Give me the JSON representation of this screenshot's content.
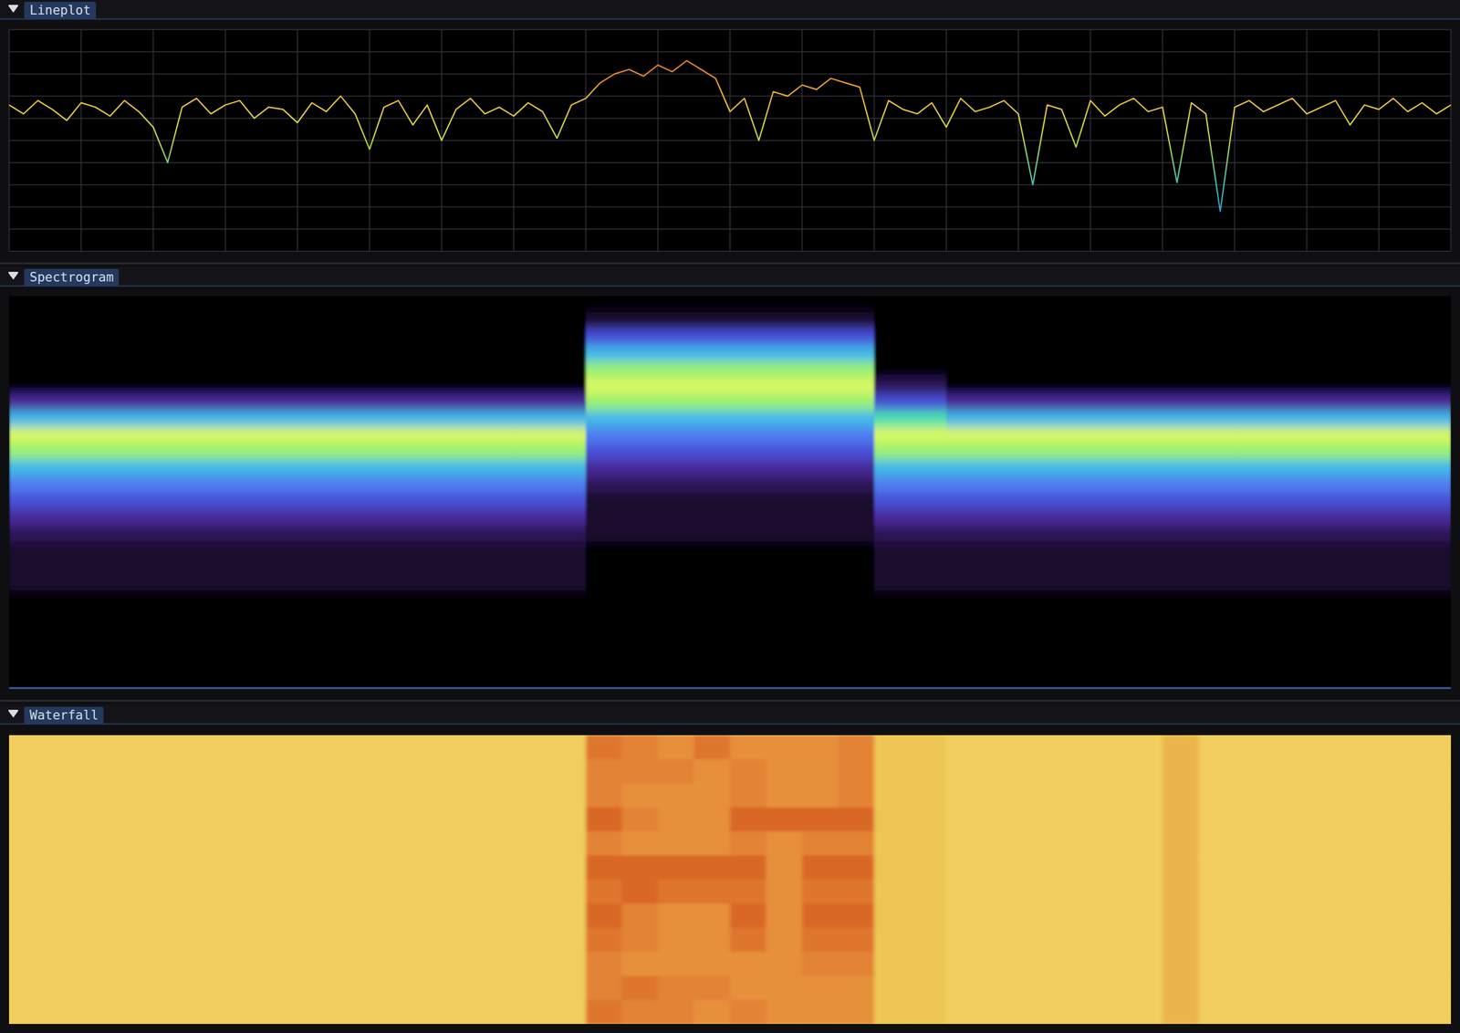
{
  "chart_data": [
    {
      "type": "line",
      "title": "Lineplot",
      "x": [
        0,
        1,
        2,
        3,
        4,
        5,
        6,
        7,
        8,
        9,
        10,
        11,
        12,
        13,
        14,
        15,
        16,
        17,
        18,
        19,
        20,
        21,
        22,
        23,
        24,
        25,
        26,
        27,
        28,
        29,
        30,
        31,
        32,
        33,
        34,
        35,
        36,
        37,
        38,
        39,
        40,
        41,
        42,
        43,
        44,
        45,
        46,
        47,
        48,
        49,
        50,
        51,
        52,
        53,
        54,
        55,
        56,
        57,
        58,
        59,
        60,
        61,
        62,
        63,
        64,
        65,
        66,
        67,
        68,
        69,
        70,
        71,
        72,
        73,
        74,
        75,
        76,
        77,
        78,
        79,
        80,
        81,
        82,
        83,
        84,
        85,
        86,
        87,
        88,
        89,
        90,
        91,
        92,
        93,
        94,
        95,
        96,
        97,
        98,
        99,
        100
      ],
      "values": [
        6.6,
        6.2,
        6.8,
        6.4,
        5.9,
        6.7,
        6.5,
        6.1,
        6.8,
        6.3,
        5.6,
        4.0,
        6.5,
        6.9,
        6.2,
        6.6,
        6.8,
        6.0,
        6.5,
        6.4,
        5.8,
        6.7,
        6.3,
        7.0,
        6.2,
        4.6,
        6.5,
        6.8,
        5.7,
        6.6,
        5.0,
        6.4,
        6.9,
        6.2,
        6.5,
        6.1,
        6.7,
        6.3,
        5.1,
        6.6,
        6.9,
        7.6,
        8.0,
        8.2,
        7.9,
        8.4,
        8.1,
        8.6,
        8.2,
        7.8,
        6.3,
        6.9,
        5.0,
        7.2,
        7.0,
        7.5,
        7.3,
        7.8,
        7.6,
        7.4,
        5.0,
        6.8,
        6.4,
        6.2,
        6.7,
        5.6,
        6.9,
        6.3,
        6.5,
        6.8,
        6.2,
        3.0,
        6.6,
        6.4,
        4.7,
        6.8,
        6.1,
        6.6,
        6.9,
        6.3,
        6.5,
        3.1,
        6.7,
        6.2,
        1.8,
        6.5,
        6.8,
        6.3,
        6.6,
        6.9,
        6.2,
        6.5,
        6.8,
        5.7,
        6.6,
        6.4,
        6.9,
        6.3,
        6.7,
        6.2,
        6.6
      ],
      "xlim": [
        0,
        100
      ],
      "ylim": [
        0,
        10
      ],
      "xticks": [
        0,
        5,
        10,
        15,
        20,
        25,
        30,
        35,
        40,
        45,
        50,
        55,
        60,
        65,
        70,
        75,
        80,
        85,
        90,
        95,
        100
      ],
      "yticks": [
        0,
        1,
        2,
        3,
        4,
        5,
        6,
        7,
        8,
        9,
        10
      ],
      "grid": true,
      "tick_labels": false
    },
    {
      "type": "heatmap",
      "title": "Spectrogram",
      "zlim": [
        0,
        9
      ],
      "tick_labels": false,
      "cells": [
        [
          0,
          0,
          0,
          0,
          0,
          0,
          0,
          0,
          0,
          0,
          0,
          0,
          0,
          0,
          0,
          0,
          0,
          0,
          0,
          0
        ],
        [
          0,
          0,
          0,
          0,
          0,
          0,
          0,
          0,
          1,
          1,
          1,
          1,
          0,
          0,
          0,
          0,
          0,
          0,
          0,
          0
        ],
        [
          0,
          0,
          0,
          0,
          0,
          0,
          0,
          0,
          4,
          4,
          4,
          4,
          0,
          0,
          0,
          0,
          0,
          0,
          0,
          0
        ],
        [
          0,
          0,
          0,
          0,
          0,
          0,
          0,
          0,
          6,
          6,
          6,
          6,
          0,
          0,
          0,
          0,
          0,
          0,
          0,
          0
        ],
        [
          0,
          0,
          0,
          0,
          0,
          0,
          0,
          0,
          8,
          8,
          8,
          8,
          0,
          0,
          0,
          0,
          0,
          0,
          0,
          0
        ],
        [
          0,
          0,
          0,
          0,
          0,
          0,
          0,
          0,
          9,
          9,
          9,
          9,
          2,
          0,
          0,
          0,
          0,
          0,
          0,
          0
        ],
        [
          3,
          3,
          3,
          3,
          3,
          3,
          3,
          3,
          8,
          8,
          8,
          8,
          4,
          3,
          3,
          3,
          3,
          3,
          3,
          3
        ],
        [
          6,
          6,
          6,
          6,
          6,
          6,
          6,
          6,
          6,
          6,
          6,
          6,
          7,
          6,
          6,
          6,
          6,
          6,
          6,
          6
        ],
        [
          9,
          9,
          9,
          9,
          9,
          9,
          9,
          9,
          5,
          5,
          5,
          5,
          9,
          9,
          9,
          9,
          9,
          9,
          9,
          9
        ],
        [
          8,
          8,
          8,
          8,
          8,
          8,
          8,
          8,
          4,
          4,
          4,
          4,
          8,
          8,
          8,
          8,
          8,
          8,
          8,
          8
        ],
        [
          6,
          6,
          6,
          6,
          6,
          6,
          6,
          6,
          3,
          3,
          3,
          3,
          6,
          6,
          6,
          6,
          6,
          6,
          6,
          6
        ],
        [
          5,
          5,
          5,
          5,
          5,
          5,
          5,
          5,
          2,
          2,
          2,
          2,
          5,
          5,
          5,
          5,
          5,
          5,
          5,
          5
        ],
        [
          4,
          4,
          4,
          4,
          4,
          4,
          4,
          4,
          1,
          1,
          1,
          1,
          4,
          4,
          4,
          4,
          4,
          4,
          4,
          4
        ],
        [
          3,
          3,
          3,
          3,
          3,
          3,
          3,
          3,
          1,
          1,
          1,
          1,
          3,
          3,
          3,
          3,
          3,
          3,
          3,
          3
        ],
        [
          2,
          2,
          2,
          2,
          2,
          2,
          2,
          2,
          1,
          1,
          1,
          1,
          2,
          2,
          2,
          2,
          2,
          2,
          2,
          2
        ],
        [
          1,
          1,
          1,
          1,
          1,
          1,
          1,
          1,
          0,
          0,
          0,
          0,
          1,
          1,
          1,
          1,
          1,
          1,
          1,
          1
        ],
        [
          1,
          1,
          1,
          1,
          1,
          1,
          1,
          1,
          0,
          0,
          0,
          0,
          1,
          1,
          1,
          1,
          1,
          1,
          1,
          1
        ],
        [
          1,
          1,
          1,
          1,
          1,
          1,
          1,
          1,
          0,
          0,
          0,
          0,
          1,
          1,
          1,
          1,
          1,
          1,
          1,
          1
        ],
        [
          0,
          0,
          0,
          0,
          0,
          0,
          0,
          0,
          0,
          0,
          0,
          0,
          0,
          0,
          0,
          0,
          0,
          0,
          0,
          0
        ],
        [
          0,
          0,
          0,
          0,
          0,
          0,
          0,
          0,
          0,
          0,
          0,
          0,
          0,
          0,
          0,
          0,
          0,
          0,
          0,
          0
        ],
        [
          0,
          0,
          0,
          0,
          0,
          0,
          0,
          0,
          0,
          0,
          0,
          0,
          0,
          0,
          0,
          0,
          0,
          0,
          0,
          0
        ],
        [
          0,
          0,
          0,
          0,
          0,
          0,
          0,
          0,
          0,
          0,
          0,
          0,
          0,
          0,
          0,
          0,
          0,
          0,
          0,
          0
        ],
        [
          0,
          0,
          0,
          0,
          0,
          0,
          0,
          0,
          0,
          0,
          0,
          0,
          0,
          0,
          0,
          0,
          0,
          0,
          0,
          0
        ],
        [
          0,
          0,
          0,
          0,
          0,
          0,
          0,
          0,
          0,
          0,
          0,
          0,
          0,
          0,
          0,
          0,
          0,
          0,
          0,
          0
        ]
      ]
    },
    {
      "type": "heatmap",
      "title": "Waterfall",
      "zlim": [
        0,
        9
      ],
      "tick_labels": false,
      "cells": [
        [
          1,
          1,
          1,
          1,
          1,
          1,
          1,
          1,
          1,
          1,
          1,
          1,
          1,
          1,
          1,
          1,
          7,
          6,
          5,
          7,
          5,
          5,
          5,
          6,
          2,
          2,
          1,
          1,
          1,
          1,
          1,
          1,
          3,
          1,
          1,
          1,
          1,
          1,
          1,
          1
        ],
        [
          1,
          1,
          1,
          1,
          1,
          1,
          1,
          1,
          1,
          1,
          1,
          1,
          1,
          1,
          1,
          1,
          6,
          6,
          6,
          5,
          6,
          5,
          5,
          6,
          2,
          2,
          1,
          1,
          1,
          1,
          1,
          1,
          3,
          1,
          1,
          1,
          1,
          1,
          1,
          1
        ],
        [
          1,
          1,
          1,
          1,
          1,
          1,
          1,
          1,
          1,
          1,
          1,
          1,
          1,
          1,
          1,
          1,
          6,
          5,
          5,
          5,
          6,
          5,
          5,
          6,
          2,
          2,
          1,
          1,
          1,
          1,
          1,
          1,
          3,
          1,
          1,
          1,
          1,
          1,
          1,
          1
        ],
        [
          1,
          1,
          1,
          1,
          1,
          1,
          1,
          1,
          1,
          1,
          1,
          1,
          1,
          1,
          1,
          1,
          8,
          6,
          5,
          5,
          8,
          8,
          8,
          8,
          2,
          2,
          1,
          1,
          1,
          1,
          1,
          1,
          3,
          1,
          1,
          1,
          1,
          1,
          1,
          1
        ],
        [
          1,
          1,
          1,
          1,
          1,
          1,
          1,
          1,
          1,
          1,
          1,
          1,
          1,
          1,
          1,
          1,
          6,
          5,
          5,
          5,
          6,
          5,
          6,
          6,
          2,
          2,
          1,
          1,
          1,
          1,
          1,
          1,
          3,
          1,
          1,
          1,
          1,
          1,
          1,
          1
        ],
        [
          1,
          1,
          1,
          1,
          1,
          1,
          1,
          1,
          1,
          1,
          1,
          1,
          1,
          1,
          1,
          1,
          8,
          8,
          8,
          8,
          8,
          5,
          8,
          8,
          2,
          2,
          1,
          1,
          1,
          1,
          1,
          1,
          3,
          1,
          1,
          1,
          1,
          1,
          1,
          1
        ],
        [
          1,
          1,
          1,
          1,
          1,
          1,
          1,
          1,
          1,
          1,
          1,
          1,
          1,
          1,
          1,
          1,
          7,
          8,
          7,
          7,
          7,
          5,
          7,
          7,
          2,
          2,
          1,
          1,
          1,
          1,
          1,
          1,
          3,
          1,
          1,
          1,
          1,
          1,
          1,
          1
        ],
        [
          1,
          1,
          1,
          1,
          1,
          1,
          1,
          1,
          1,
          1,
          1,
          1,
          1,
          1,
          1,
          1,
          8,
          6,
          5,
          5,
          8,
          5,
          8,
          8,
          2,
          2,
          1,
          1,
          1,
          1,
          1,
          1,
          3,
          1,
          1,
          1,
          1,
          1,
          1,
          1
        ],
        [
          1,
          1,
          1,
          1,
          1,
          1,
          1,
          1,
          1,
          1,
          1,
          1,
          1,
          1,
          1,
          1,
          7,
          6,
          5,
          5,
          7,
          5,
          7,
          7,
          2,
          2,
          1,
          1,
          1,
          1,
          1,
          1,
          3,
          1,
          1,
          1,
          1,
          1,
          1,
          1
        ],
        [
          1,
          1,
          1,
          1,
          1,
          1,
          1,
          1,
          1,
          1,
          1,
          1,
          1,
          1,
          1,
          1,
          6,
          5,
          5,
          5,
          5,
          5,
          6,
          6,
          2,
          2,
          1,
          1,
          1,
          1,
          1,
          1,
          3,
          1,
          1,
          1,
          1,
          1,
          1,
          1
        ],
        [
          1,
          1,
          1,
          1,
          1,
          1,
          1,
          1,
          1,
          1,
          1,
          1,
          1,
          1,
          1,
          1,
          6,
          7,
          6,
          6,
          5,
          5,
          5,
          5,
          2,
          2,
          1,
          1,
          1,
          1,
          1,
          1,
          3,
          1,
          1,
          1,
          1,
          1,
          1,
          1
        ],
        [
          1,
          1,
          1,
          1,
          1,
          1,
          1,
          1,
          1,
          1,
          1,
          1,
          1,
          1,
          1,
          1,
          7,
          6,
          6,
          5,
          6,
          5,
          5,
          5,
          2,
          2,
          1,
          1,
          1,
          1,
          1,
          1,
          3,
          1,
          1,
          1,
          1,
          1,
          1,
          1
        ]
      ]
    }
  ]
}
